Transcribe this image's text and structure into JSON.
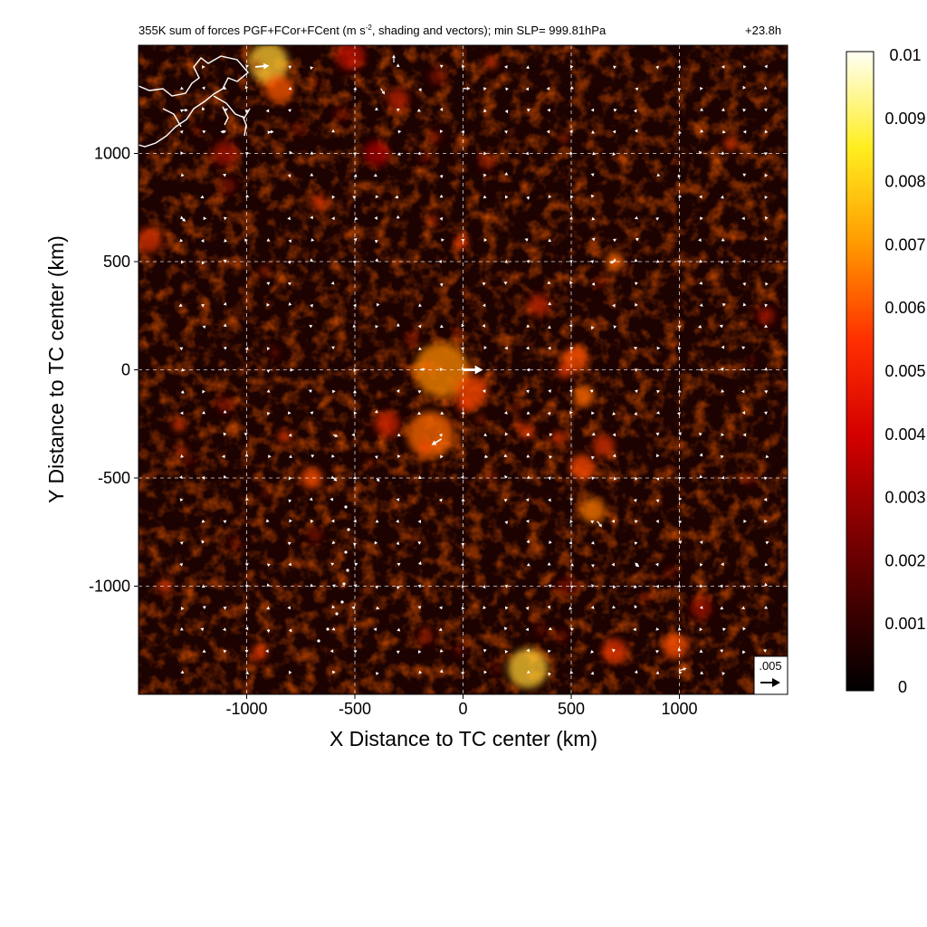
{
  "header": {
    "title_prefix": "355K sum of forces PGF+FCor+FCent (m s",
    "title_exponent": "-2",
    "title_suffix": ", shading and vectors); min SLP= 999.81hPa",
    "time_label": "+23.8h"
  },
  "chart_data": {
    "type": "heatmap",
    "xlabel": "X Distance to TC center (km)",
    "ylabel": "Y Distance to TC center (km)",
    "xlim": [
      -1500,
      1500
    ],
    "ylim": [
      -1500,
      1500
    ],
    "xticks": [
      -1000,
      -500,
      0,
      500,
      1000
    ],
    "yticks": [
      -1000,
      -500,
      0,
      500,
      1000
    ],
    "grid": true,
    "colorbar": {
      "range": [
        0,
        0.01
      ],
      "ticks": [
        "0.01",
        "0.009",
        "0.008",
        "0.007",
        "0.006",
        "0.005",
        "0.004",
        "0.003",
        "0.002",
        "0.001",
        "0"
      ]
    },
    "reference_vector": {
      "label": ".005",
      "magnitude": 0.005
    },
    "notable_vectors": [
      {
        "x": 0,
        "y": 0,
        "u": 0.005,
        "v": 0
      },
      {
        "x": -100,
        "y": -320,
        "u": -0.0025,
        "v": -0.0015
      },
      {
        "x": -960,
        "y": 1400,
        "u": 0.0035,
        "v": 0.0003
      },
      {
        "x": -320,
        "y": 1420,
        "u": 0,
        "v": 0.002
      },
      {
        "x": -380,
        "y": 1300,
        "u": 0.001,
        "v": -0.0015
      },
      {
        "x": 620,
        "y": -700,
        "u": 0.0012,
        "v": -0.0015
      },
      {
        "x": 1000,
        "y": -1390,
        "u": 0.0018,
        "v": 0.0006
      },
      {
        "x": 0,
        "y": 1300,
        "u": 0.0018,
        "v": 0
      },
      {
        "x": -1300,
        "y": 700,
        "u": 0.001,
        "v": -0.0008
      },
      {
        "x": -600,
        "y": -500,
        "u": 0.001,
        "v": -0.0008
      },
      {
        "x": -600,
        "y": -300,
        "u": 0.0012,
        "v": -0.0005
      },
      {
        "x": -200,
        "y": 0,
        "u": 0.0014,
        "v": 0.0002
      },
      {
        "x": 700,
        "y": 500,
        "u": -0.0012,
        "v": -0.0003
      },
      {
        "x": -1300,
        "y": 1200,
        "u": 0.0016,
        "v": 0
      },
      {
        "x": -900,
        "y": 1100,
        "u": 0.0014,
        "v": 0
      },
      {
        "x": -1100,
        "y": 1100,
        "u": -0.0012,
        "v": 0
      },
      {
        "x": -400,
        "y": -500,
        "u": 0.0008,
        "v": -0.001
      },
      {
        "x": 800,
        "y": -900,
        "u": 0.0008,
        "v": -0.0006
      }
    ]
  }
}
